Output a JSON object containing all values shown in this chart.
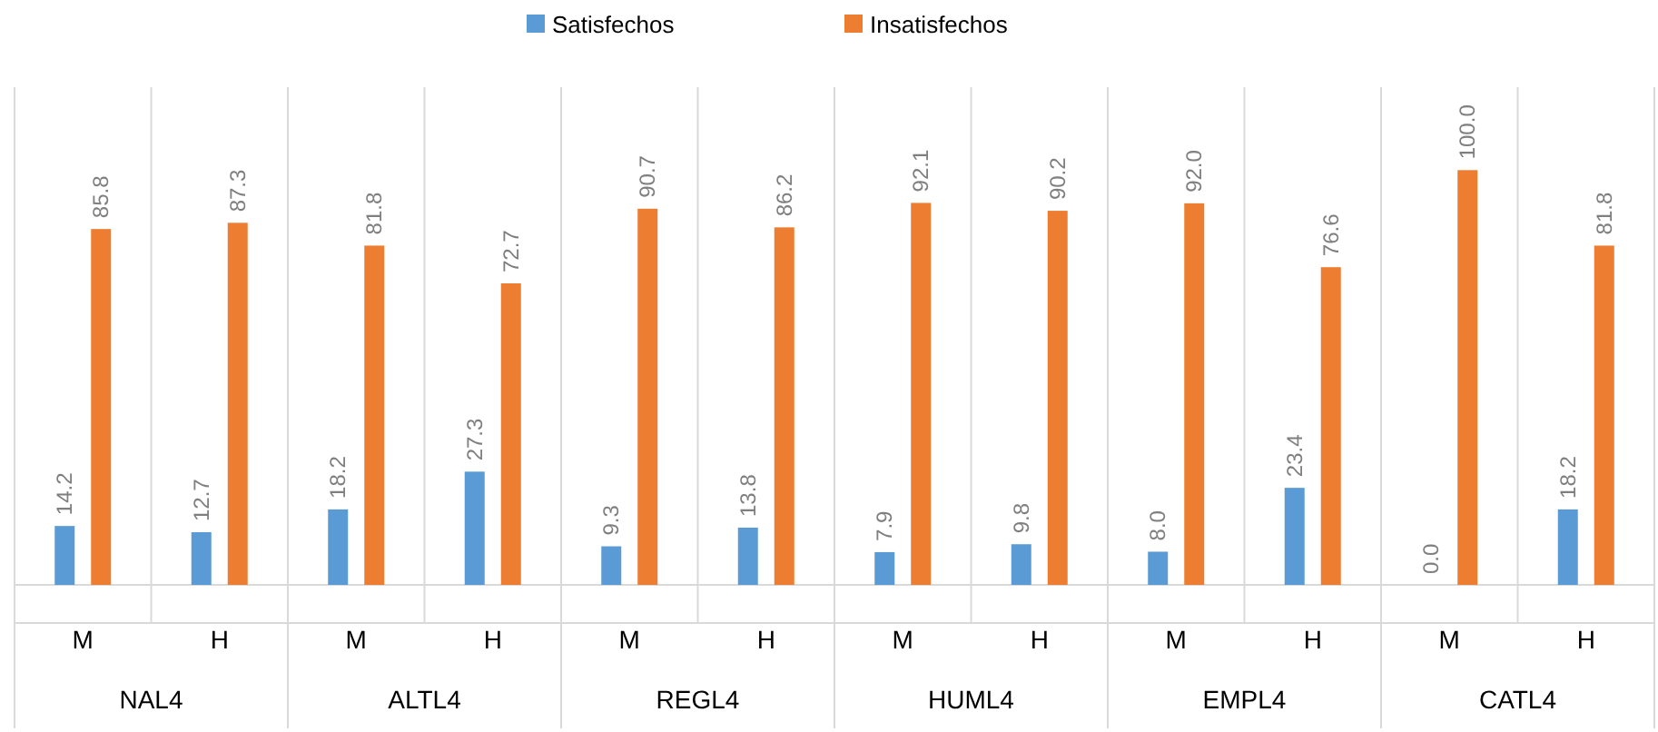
{
  "chart_data": {
    "type": "bar",
    "categories": [
      "M",
      "H",
      "M",
      "H",
      "M",
      "H",
      "M",
      "H",
      "M",
      "H",
      "M",
      "H"
    ],
    "annotations": [
      "NAL4",
      "ALTL4",
      "REGL4",
      "HUML4",
      "EMPL4",
      "CATL4"
    ],
    "series": [
      {
        "name": "Satisfechos",
        "color": "#5b9bd5",
        "values": [
          14.2,
          12.7,
          18.2,
          27.3,
          9.3,
          13.8,
          7.9,
          9.8,
          8.0,
          23.4,
          0.0,
          18.2
        ],
        "value_labels": [
          "14.2",
          "12.7",
          "18.2",
          "27.3",
          "9.3",
          "13.8",
          "7.9",
          "9.8",
          "8.0",
          "23.4",
          "0.0",
          "18.2"
        ]
      },
      {
        "name": "Insatisfechos",
        "color": "#ed7d31",
        "values": [
          85.8,
          87.3,
          81.8,
          72.7,
          90.7,
          86.2,
          92.1,
          90.2,
          92.0,
          76.6,
          100.0,
          81.8
        ],
        "value_labels": [
          "85.8",
          "87.3",
          "81.8",
          "72.7",
          "90.7",
          "86.2",
          "92.1",
          "90.2",
          "92.0",
          "76.6",
          "100.0",
          "81.8"
        ]
      }
    ],
    "data_labels": true,
    "legend": "top",
    "grid": false
  }
}
